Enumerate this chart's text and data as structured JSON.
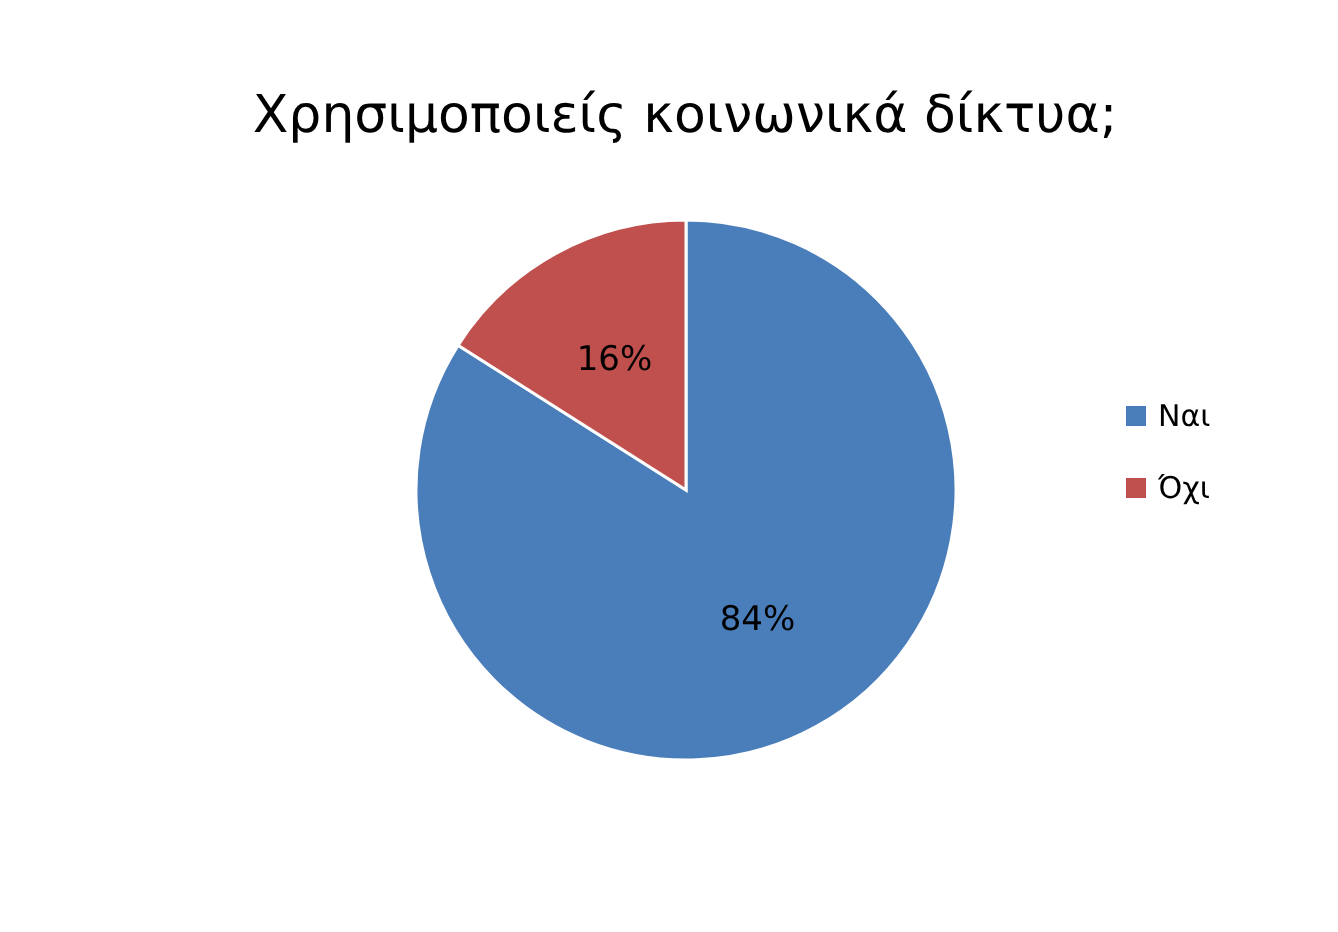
{
  "chart_data": {
    "type": "pie",
    "title": "Χρησιμοποιείς κοινωνικά δίκτυα;",
    "categories": [
      "Ναι",
      "Όχι"
    ],
    "values": [
      84,
      16
    ],
    "colors": [
      "#4a7ebb",
      "#c0504d"
    ],
    "value_labels": [
      "84%",
      "16%"
    ],
    "legend": "right"
  }
}
